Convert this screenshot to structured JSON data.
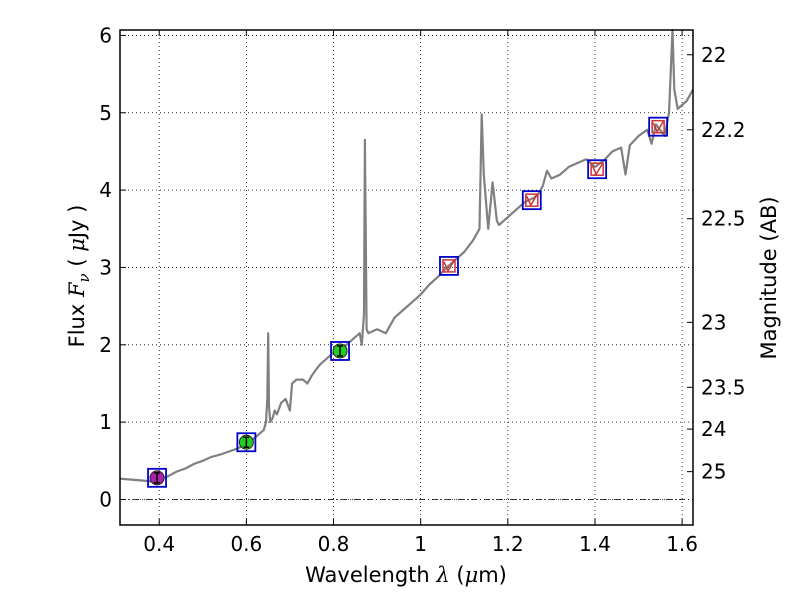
{
  "chart_data": {
    "type": "line",
    "xlabel": {
      "prefix": "Wavelength  ",
      "symbol": "λ",
      "mid": " (",
      "unit_symbol": "μ",
      "suffix": "m)"
    },
    "ylabel": {
      "prefix": "Flux  ",
      "symbol": "F",
      "sub": "ν",
      "mid": "  (  ",
      "unit_symbol": "μ",
      "suffix": "Jy )"
    },
    "y2label": "Magnitude (AB)",
    "xlim": [
      0.31,
      1.625
    ],
    "ylim": [
      -0.33,
      6.07
    ],
    "xticks": [
      0.4,
      0.6,
      0.8,
      1.0,
      1.2,
      1.4,
      1.6
    ],
    "xtick_labels": [
      "0.4",
      "0.6",
      "0.8",
      "1",
      "1.2",
      "1.4",
      "1.6"
    ],
    "yticks": [
      0,
      1,
      2,
      3,
      4,
      5,
      6
    ],
    "ytick_labels": [
      "0",
      "1",
      "2",
      "3",
      "4",
      "5",
      "6"
    ],
    "y2_ticks": [
      {
        "label": "22",
        "flux": 5.75
      },
      {
        "label": "22.2",
        "flux": 4.78
      },
      {
        "label": "22.5",
        "flux": 3.63
      },
      {
        "label": "23",
        "flux": 2.29
      },
      {
        "label": "23.5",
        "flux": 1.45
      },
      {
        "label": "24",
        "flux": 0.91
      },
      {
        "label": "25",
        "flux": 0.36
      }
    ],
    "grid": true,
    "spectrum": {
      "color": "#808080",
      "points": [
        [
          0.31,
          0.27
        ],
        [
          0.33,
          0.26
        ],
        [
          0.35,
          0.25
        ],
        [
          0.37,
          0.24
        ],
        [
          0.385,
          0.23
        ],
        [
          0.4,
          0.26
        ],
        [
          0.42,
          0.3
        ],
        [
          0.44,
          0.36
        ],
        [
          0.46,
          0.4
        ],
        [
          0.48,
          0.46
        ],
        [
          0.5,
          0.5
        ],
        [
          0.52,
          0.55
        ],
        [
          0.54,
          0.58
        ],
        [
          0.56,
          0.62
        ],
        [
          0.58,
          0.66
        ],
        [
          0.6,
          0.72
        ],
        [
          0.62,
          0.8
        ],
        [
          0.64,
          0.9
        ],
        [
          0.645,
          1.0
        ],
        [
          0.648,
          1.3
        ],
        [
          0.65,
          2.15
        ],
        [
          0.652,
          1.2
        ],
        [
          0.655,
          1.0
        ],
        [
          0.66,
          1.05
        ],
        [
          0.665,
          1.15
        ],
        [
          0.67,
          1.1
        ],
        [
          0.68,
          1.25
        ],
        [
          0.69,
          1.3
        ],
        [
          0.7,
          1.15
        ],
        [
          0.705,
          1.5
        ],
        [
          0.715,
          1.55
        ],
        [
          0.73,
          1.55
        ],
        [
          0.74,
          1.5
        ],
        [
          0.75,
          1.6
        ],
        [
          0.76,
          1.68
        ],
        [
          0.77,
          1.75
        ],
        [
          0.78,
          1.8
        ],
        [
          0.79,
          1.85
        ],
        [
          0.8,
          1.9
        ],
        [
          0.81,
          1.93
        ],
        [
          0.83,
          2.0
        ],
        [
          0.85,
          2.1
        ],
        [
          0.86,
          2.15
        ],
        [
          0.865,
          2.0
        ],
        [
          0.87,
          2.4
        ],
        [
          0.872,
          4.65
        ],
        [
          0.876,
          2.2
        ],
        [
          0.88,
          2.15
        ],
        [
          0.9,
          2.2
        ],
        [
          0.92,
          2.15
        ],
        [
          0.94,
          2.35
        ],
        [
          0.96,
          2.45
        ],
        [
          0.98,
          2.55
        ],
        [
          1.0,
          2.65
        ],
        [
          1.02,
          2.78
        ],
        [
          1.04,
          2.88
        ],
        [
          1.06,
          3.0
        ],
        [
          1.08,
          3.1
        ],
        [
          1.1,
          3.2
        ],
        [
          1.12,
          3.35
        ],
        [
          1.135,
          3.5
        ],
        [
          1.14,
          4.98
        ],
        [
          1.145,
          4.2
        ],
        [
          1.155,
          3.5
        ],
        [
          1.165,
          4.1
        ],
        [
          1.175,
          3.6
        ],
        [
          1.18,
          3.55
        ],
        [
          1.2,
          3.65
        ],
        [
          1.22,
          3.75
        ],
        [
          1.24,
          3.85
        ],
        [
          1.26,
          3.9
        ],
        [
          1.27,
          3.95
        ],
        [
          1.28,
          4.05
        ],
        [
          1.29,
          4.25
        ],
        [
          1.3,
          4.15
        ],
        [
          1.32,
          4.2
        ],
        [
          1.34,
          4.3
        ],
        [
          1.36,
          4.35
        ],
        [
          1.38,
          4.4
        ],
        [
          1.4,
          4.3
        ],
        [
          1.42,
          4.38
        ],
        [
          1.44,
          4.5
        ],
        [
          1.46,
          4.55
        ],
        [
          1.47,
          4.2
        ],
        [
          1.48,
          4.58
        ],
        [
          1.5,
          4.7
        ],
        [
          1.52,
          4.78
        ],
        [
          1.53,
          4.6
        ],
        [
          1.54,
          4.85
        ],
        [
          1.56,
          4.7
        ],
        [
          1.57,
          5.0
        ],
        [
          1.578,
          6.07
        ],
        [
          1.582,
          5.3
        ],
        [
          1.59,
          5.05
        ],
        [
          1.6,
          5.1
        ],
        [
          1.61,
          5.15
        ],
        [
          1.625,
          5.3
        ]
      ]
    },
    "photometry": [
      {
        "x": 0.395,
        "y": 0.28,
        "fill": "#aa22aa",
        "type": "detected"
      },
      {
        "x": 0.6,
        "y": 0.74,
        "fill": "#22cc22",
        "type": "detected"
      },
      {
        "x": 0.815,
        "y": 1.92,
        "fill": "#22cc22",
        "type": "detected"
      },
      {
        "x": 1.065,
        "y": 3.02,
        "type": "model"
      },
      {
        "x": 1.255,
        "y": 3.87,
        "type": "model"
      },
      {
        "x": 1.405,
        "y": 4.27,
        "type": "model"
      },
      {
        "x": 1.545,
        "y": 4.82,
        "type": "model"
      }
    ],
    "marker_box_color": "#0000cc",
    "model_marker_color": "#cc3333"
  }
}
